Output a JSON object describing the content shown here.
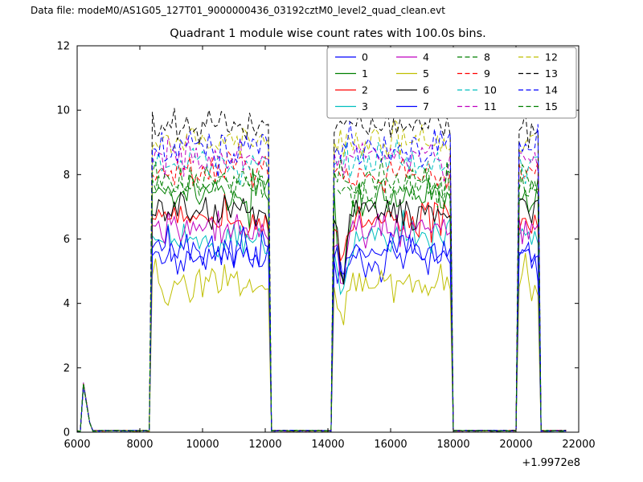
{
  "header": {
    "data_file_label": "Data file: modeM0/AS1G05_127T01_9000000436_03192cztM0_level2_quad_clean.evt"
  },
  "chart_data": {
    "type": "line",
    "title": "Quadrant 1 module wise count rates with 100.0s bins.",
    "xlabel": "",
    "ylabel": "",
    "xlim": [
      6000,
      22000
    ],
    "ylim": [
      0,
      12
    ],
    "x_ticks": [
      6000,
      8000,
      10000,
      12000,
      14000,
      16000,
      18000,
      20000,
      22000
    ],
    "y_ticks": [
      0,
      2,
      4,
      6,
      8,
      10,
      12
    ],
    "x_offset_label": "+1.9972e8",
    "grid": false,
    "bin_seconds": 100.0,
    "legend": {
      "columns": 4,
      "rows": 4,
      "position": "upper right inside"
    },
    "on_intervals": [
      [
        8350,
        12150
      ],
      [
        14150,
        17900
      ],
      [
        20050,
        20750
      ]
    ],
    "startup_spike": {
      "x": 6200,
      "peak": 1.55,
      "end": 6450
    },
    "transient_dip": {
      "x": 14450,
      "width": 180,
      "min_rate": 3.3
    },
    "series": [
      {
        "name": "0",
        "color": "#0000ff",
        "linestyle": "solid",
        "mean_rate": 5.4
      },
      {
        "name": "1",
        "color": "#007f00",
        "linestyle": "solid",
        "mean_rate": 7.35
      },
      {
        "name": "2",
        "color": "#ff0000",
        "linestyle": "solid",
        "mean_rate": 6.6
      },
      {
        "name": "3",
        "color": "#00bfbf",
        "linestyle": "solid",
        "mean_rate": 6.05
      },
      {
        "name": "4",
        "color": "#bf00bf",
        "linestyle": "solid",
        "mean_rate": 6.3
      },
      {
        "name": "5",
        "color": "#bfbf00",
        "linestyle": "solid",
        "mean_rate": 4.6
      },
      {
        "name": "6",
        "color": "#000000",
        "linestyle": "solid",
        "mean_rate": 6.9
      },
      {
        "name": "7",
        "color": "#0000ff",
        "linestyle": "solid",
        "mean_rate": 5.7
      },
      {
        "name": "8",
        "color": "#007f00",
        "linestyle": "dashed",
        "mean_rate": 7.6
      },
      {
        "name": "9",
        "color": "#ff0000",
        "linestyle": "dashed",
        "mean_rate": 8.0
      },
      {
        "name": "10",
        "color": "#00bfbf",
        "linestyle": "dashed",
        "mean_rate": 8.3
      },
      {
        "name": "11",
        "color": "#bf00bf",
        "linestyle": "dashed",
        "mean_rate": 8.6
      },
      {
        "name": "12",
        "color": "#bfbf00",
        "linestyle": "dashed",
        "mean_rate": 9.0
      },
      {
        "name": "13",
        "color": "#000000",
        "linestyle": "dashed",
        "mean_rate": 9.5
      },
      {
        "name": "14",
        "color": "#0000ff",
        "linestyle": "dashed",
        "mean_rate": 8.8
      },
      {
        "name": "15",
        "color": "#007f00",
        "linestyle": "dashed",
        "mean_rate": 7.8
      }
    ]
  }
}
